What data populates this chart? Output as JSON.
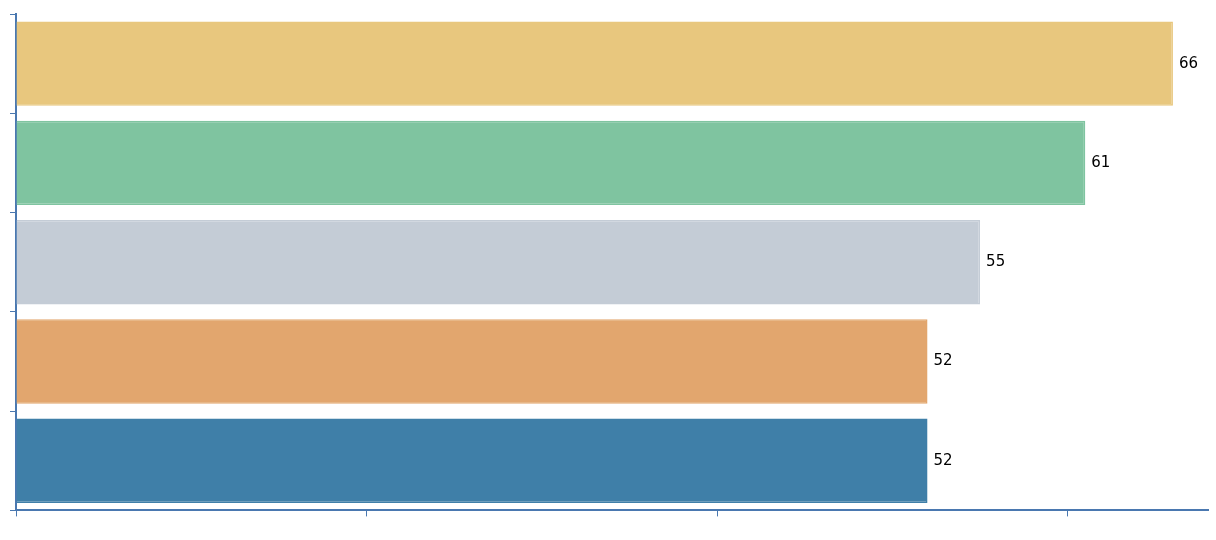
{
  "chart_data": {
    "type": "bar",
    "orientation": "horizontal",
    "categories": [
      null,
      null,
      null,
      null,
      null
    ],
    "values": [
      66,
      61,
      55,
      52,
      52
    ],
    "colors": [
      "#e8c77e",
      "#7fc4a0",
      "#c4ccd6",
      "#e2a66e",
      "#3f7fa8"
    ],
    "xlim": [
      0,
      68
    ],
    "xticks": [
      {
        "value": 0,
        "label": null
      },
      {
        "value": 20,
        "label": null
      },
      {
        "value": 40,
        "label": null
      },
      {
        "value": 60,
        "label": null
      }
    ],
    "grid": false,
    "legend": false,
    "data_labels": true
  }
}
